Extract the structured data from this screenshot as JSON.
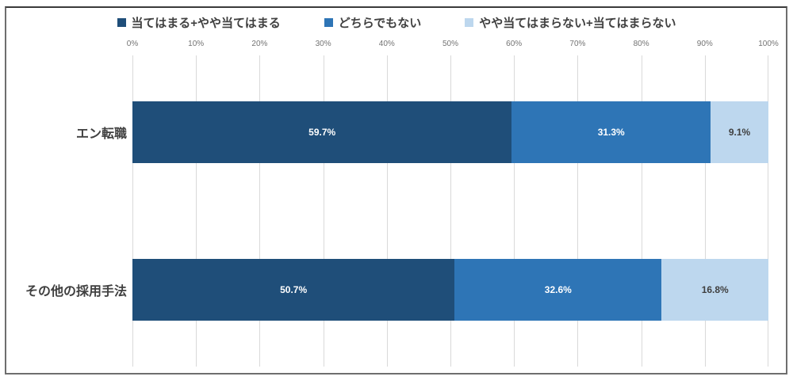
{
  "chart_data": {
    "type": "bar",
    "orientation": "horizontal",
    "stacked": true,
    "grid": true,
    "legend_position": "top",
    "xlim": [
      0,
      100
    ],
    "x_ticks": [
      "0%",
      "10%",
      "20%",
      "30%",
      "40%",
      "50%",
      "60%",
      "70%",
      "80%",
      "90%",
      "100%"
    ],
    "categories": [
      "エン転職",
      "その他の採用手法"
    ],
    "series": [
      {
        "name": "当てはまる+やや当てはまる",
        "color": "#1F4E79",
        "values": [
          59.7,
          50.7
        ]
      },
      {
        "name": "どちらでもない",
        "color": "#2E75B6",
        "values": [
          31.3,
          32.6
        ]
      },
      {
        "name": "やや当てはまらない+当てはまらない",
        "color": "#BDD7EE",
        "values": [
          9.1,
          16.8
        ]
      }
    ],
    "value_labels": [
      [
        "59.7%",
        "31.3%",
        "9.1%"
      ],
      [
        "50.7%",
        "32.6%",
        "16.8%"
      ]
    ],
    "colors": {
      "gridline": "#d9d9d9",
      "tick_text": "#737373",
      "label_text": "#404040",
      "value_text_on_dark": "#ffffff",
      "value_text_on_light": "#404040"
    }
  }
}
